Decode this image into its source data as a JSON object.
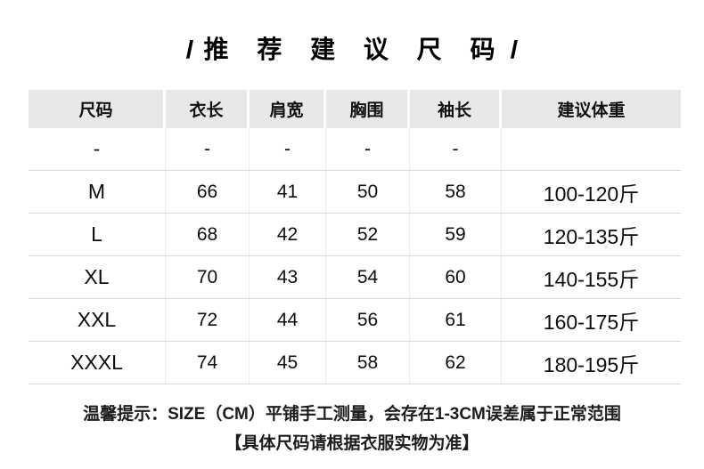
{
  "title": {
    "left_slash": "/",
    "text": "推 荐 建 议 尺 码",
    "right_slash": "/"
  },
  "table": {
    "headers": [
      "尺码",
      "衣长",
      "肩宽",
      "胸围",
      "袖长",
      "建议体重"
    ],
    "rows": [
      {
        "size": "-",
        "length": "-",
        "shoulder": "-",
        "chest": "-",
        "sleeve": "-",
        "weight": ""
      },
      {
        "size": "M",
        "length": "66",
        "shoulder": "41",
        "chest": "50",
        "sleeve": "58",
        "weight": "100-120斤"
      },
      {
        "size": "L",
        "length": "68",
        "shoulder": "42",
        "chest": "52",
        "sleeve": "59",
        "weight": "120-135斤"
      },
      {
        "size": "XL",
        "length": "70",
        "shoulder": "43",
        "chest": "54",
        "sleeve": "60",
        "weight": "140-155斤"
      },
      {
        "size": "XXL",
        "length": "72",
        "shoulder": "44",
        "chest": "56",
        "sleeve": "61",
        "weight": "160-175斤"
      },
      {
        "size": "XXXL",
        "length": "74",
        "shoulder": "45",
        "chest": "58",
        "sleeve": "62",
        "weight": "180-195斤"
      }
    ]
  },
  "footer": {
    "line1": "温馨提示：SIZE（CM）平铺手工测量，会存在1-3CM误差属于正常范围",
    "line2": "【具体尺码请根据衣服实物为准】"
  },
  "colors": {
    "page_background": "#ffffff",
    "header_background": "#e8e8e8",
    "row_divider": "#d9d9d9",
    "column_divider": "#ececec",
    "text": "#0d0d0d"
  }
}
